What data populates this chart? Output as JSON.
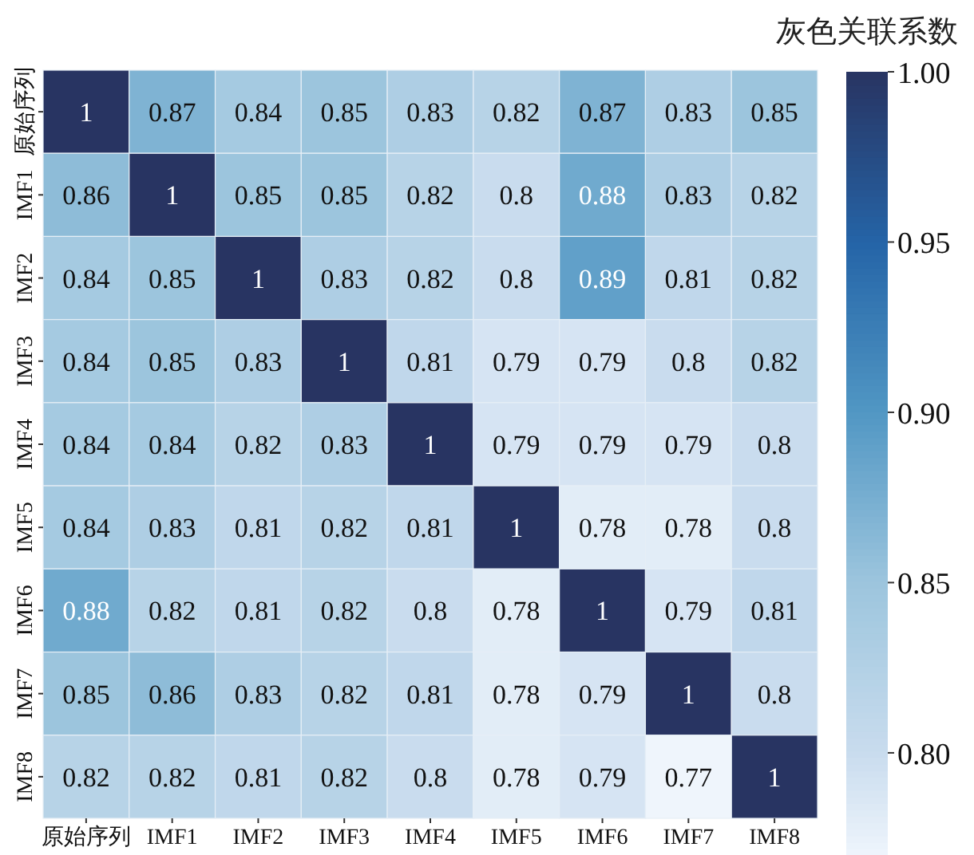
{
  "chart_data": {
    "type": "heatmap",
    "clabel": "灰色关联系数",
    "categories": [
      "原始序列",
      "IMF1",
      "IMF2",
      "IMF3",
      "IMF4",
      "IMF5",
      "IMF6",
      "IMF7",
      "IMF8"
    ],
    "y_categories": [
      "原始序列",
      "IMF1",
      "IMF2",
      "IMF3",
      "IMF4",
      "IMF5",
      "IMF6",
      "IMF7",
      "IMF8"
    ],
    "cells": [
      [
        1,
        0.87,
        0.84,
        0.85,
        0.83,
        0.82,
        0.87,
        0.83,
        0.85
      ],
      [
        0.86,
        1,
        0.85,
        0.85,
        0.82,
        0.8,
        0.88,
        0.83,
        0.82
      ],
      [
        0.84,
        0.85,
        1,
        0.83,
        0.82,
        0.8,
        0.89,
        0.81,
        0.82
      ],
      [
        0.84,
        0.85,
        0.83,
        1,
        0.81,
        0.79,
        0.79,
        0.8,
        0.82
      ],
      [
        0.84,
        0.84,
        0.82,
        0.83,
        1,
        0.79,
        0.79,
        0.79,
        0.8
      ],
      [
        0.84,
        0.83,
        0.81,
        0.82,
        0.81,
        1,
        0.78,
        0.78,
        0.8
      ],
      [
        0.88,
        0.82,
        0.81,
        0.82,
        0.8,
        0.78,
        1,
        0.79,
        0.81
      ],
      [
        0.85,
        0.86,
        0.83,
        0.82,
        0.81,
        0.78,
        0.79,
        1,
        0.8
      ],
      [
        0.82,
        0.82,
        0.81,
        0.82,
        0.8,
        0.78,
        0.79,
        0.77,
        1
      ]
    ],
    "clim": [
      0.77,
      1.0
    ],
    "cticks": [
      {
        "value": 0.8,
        "label": "0.80"
      },
      {
        "value": 0.85,
        "label": "0.85"
      },
      {
        "value": 0.9,
        "label": "0.90"
      },
      {
        "value": 0.95,
        "label": "0.95"
      },
      {
        "value": 1.0,
        "label": "1.00"
      }
    ],
    "data_labels": true
  }
}
